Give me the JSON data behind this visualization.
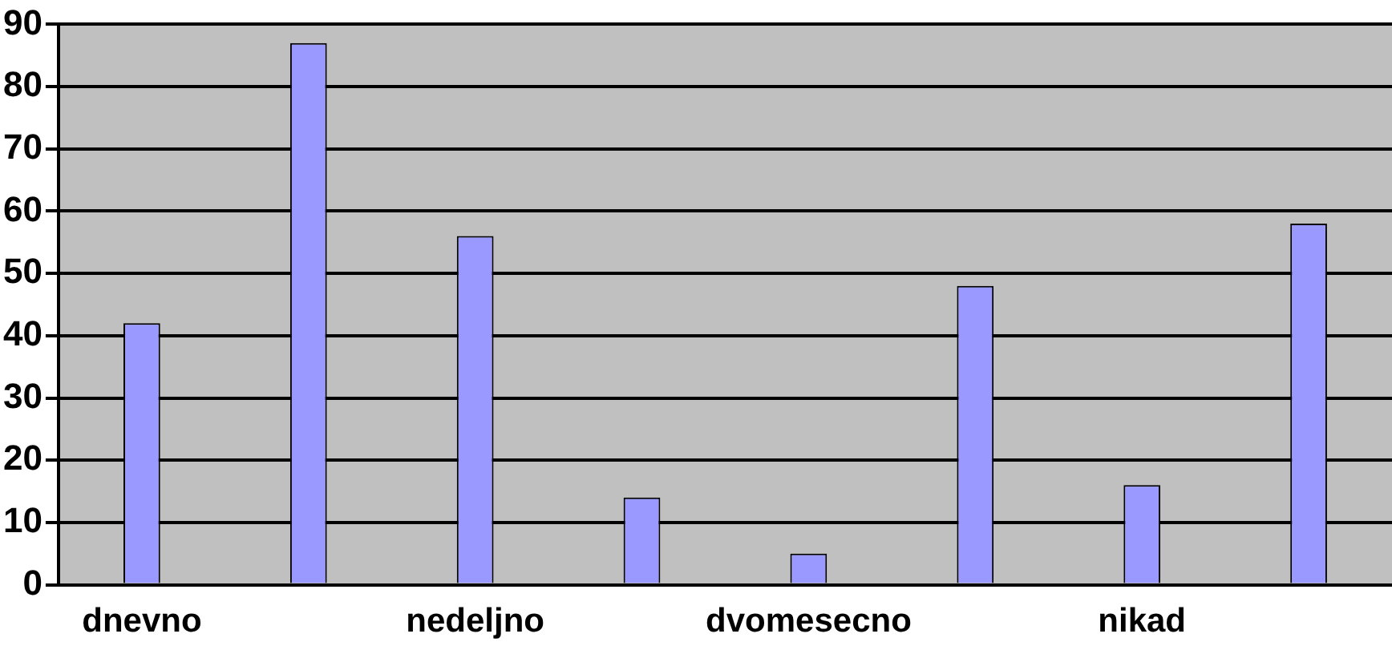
{
  "chart_data": {
    "type": "bar",
    "categories": [
      "dnevno",
      null,
      "nedeljno",
      null,
      "dvomesecno",
      null,
      "nikad",
      null
    ],
    "values": [
      42,
      87,
      56,
      14,
      5,
      48,
      16,
      58
    ],
    "color": "#9999ff",
    "ylim": [
      0,
      90
    ],
    "yticks": [
      0,
      10,
      20,
      30,
      40,
      50,
      60,
      70,
      80,
      90
    ],
    "grid": "y",
    "legend": false
  }
}
